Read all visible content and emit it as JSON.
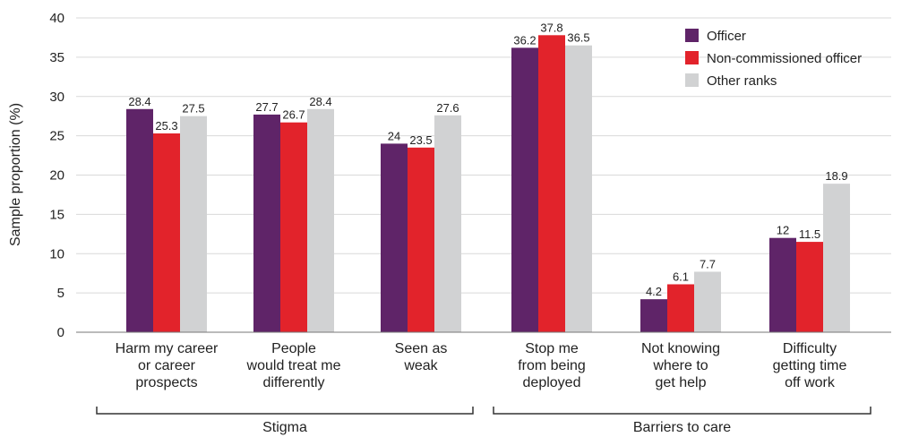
{
  "chart_data": {
    "type": "bar",
    "ylabel": "Sample proportion (%)",
    "ylim": [
      0,
      40
    ],
    "yticks": [
      0,
      5,
      10,
      15,
      20,
      25,
      30,
      35,
      40
    ],
    "grid": true,
    "legend_position": "top-right",
    "categories": [
      [
        "Harm my career",
        "or career",
        "prospects"
      ],
      [
        "People",
        "would treat me",
        "differently"
      ],
      [
        "Seen as",
        "weak"
      ],
      [
        "Stop me",
        "from being",
        "deployed"
      ],
      [
        "Not knowing",
        "where to",
        "get help"
      ],
      [
        "Difficulty",
        "getting time",
        "off work"
      ]
    ],
    "groups": [
      {
        "label": "Stigma",
        "categories": [
          0,
          1,
          2
        ]
      },
      {
        "label": "Barriers to care",
        "categories": [
          3,
          4,
          5
        ]
      }
    ],
    "series": [
      {
        "name": "Officer",
        "color": "#5f2468",
        "values": [
          28.4,
          27.7,
          24,
          36.2,
          4.2,
          12
        ],
        "labels": [
          "28.4",
          "27.7",
          "24",
          "36.2",
          "4.2",
          "12"
        ]
      },
      {
        "name": "Non-commissioned officer",
        "color": "#e2232b",
        "values": [
          25.3,
          26.7,
          23.5,
          37.8,
          6.1,
          11.5
        ],
        "labels": [
          "25.3",
          "26.7",
          "23.5",
          "37.8",
          "6.1",
          "11.5"
        ]
      },
      {
        "name": "Other ranks",
        "color": "#d1d2d3",
        "values": [
          27.5,
          28.4,
          27.6,
          36.5,
          7.7,
          18.9
        ],
        "labels": [
          "27.5",
          "28.4",
          "27.6",
          "36.5",
          "7.7",
          "18.9"
        ]
      }
    ]
  }
}
